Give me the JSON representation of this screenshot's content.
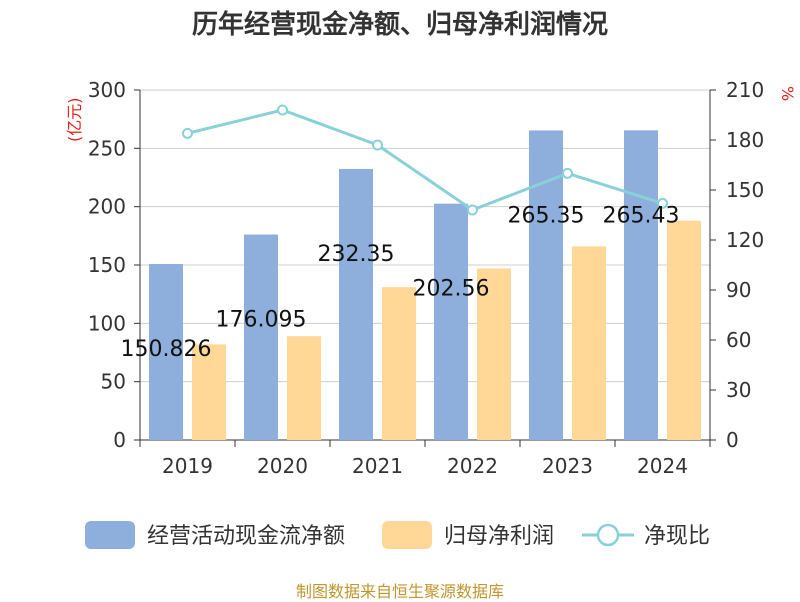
{
  "chart_data": {
    "type": "bar",
    "title": "历年经营现金净额、归母净利润情况",
    "categories": [
      "2019",
      "2020",
      "2021",
      "2022",
      "2023",
      "2024"
    ],
    "series": [
      {
        "name": "经营活动现金流净额",
        "kind": "bar",
        "axis": "left",
        "color": "#8eaedb",
        "values": [
          150.826,
          176.095,
          232.35,
          202.56,
          265.35,
          265.43
        ],
        "labels": [
          "150.826",
          "176.095",
          "232.35",
          "202.56",
          "265.35",
          "265.43"
        ]
      },
      {
        "name": "归母净利润",
        "kind": "bar",
        "axis": "left",
        "color": "#ffd898",
        "values": [
          82,
          89,
          131,
          147,
          166,
          188
        ]
      },
      {
        "name": "净现比",
        "kind": "line",
        "axis": "right",
        "color": "#88d1d9",
        "values": [
          184,
          198,
          177,
          138,
          160,
          142
        ]
      }
    ],
    "left_axis": {
      "unit": "(亿元)",
      "ylim": [
        0,
        300
      ],
      "ticks": [
        "0",
        "50",
        "100",
        "150",
        "200",
        "250",
        "300"
      ]
    },
    "right_axis": {
      "unit": "%",
      "ylim": [
        0,
        210
      ],
      "ticks": [
        "0",
        "30",
        "60",
        "90",
        "120",
        "150",
        "180",
        "210"
      ]
    },
    "grid": true,
    "legend_position": "bottom"
  },
  "source": "制图数据来自恒生聚源数据库"
}
